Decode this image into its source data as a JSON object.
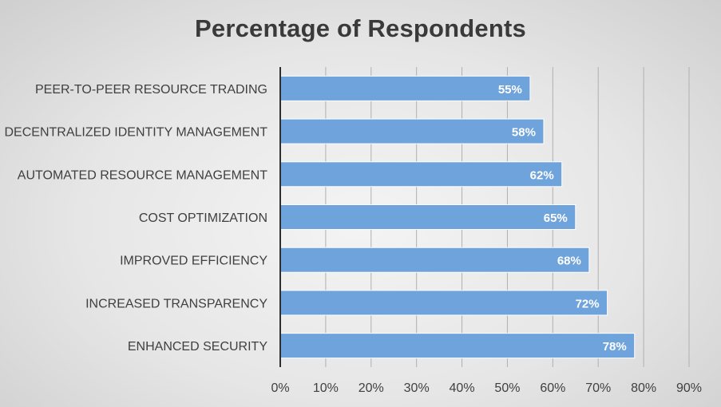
{
  "chart_data": {
    "type": "bar",
    "orientation": "horizontal",
    "title": "Percentage of Respondents",
    "categories": [
      "PEER-TO-PEER RESOURCE TRADING",
      "DECENTRALIZED IDENTITY MANAGEMENT",
      "AUTOMATED RESOURCE MANAGEMENT",
      "COST OPTIMIZATION",
      "IMPROVED EFFICIENCY",
      "INCREASED TRANSPARENCY",
      "ENHANCED SECURITY"
    ],
    "values": [
      55,
      58,
      62,
      65,
      68,
      72,
      78
    ],
    "data_labels": [
      "55%",
      "58%",
      "62%",
      "65%",
      "68%",
      "72%",
      "78%"
    ],
    "xlim": [
      0,
      90
    ],
    "x_ticks": [
      "0%",
      "10%",
      "20%",
      "30%",
      "40%",
      "50%",
      "60%",
      "70%",
      "80%",
      "90%"
    ],
    "grid": "vertical",
    "legend": "none",
    "bar_color": "#6fa3db"
  }
}
